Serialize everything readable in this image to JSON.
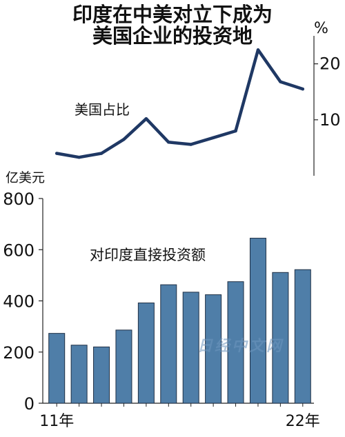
{
  "title_lines": [
    "印度在中美对立下成为",
    "美国企业的投资地"
  ],
  "watermark": "日经中文网",
  "chart_data": [
    {
      "type": "line",
      "series_label": "美国占比",
      "unit": "%",
      "x": [
        2011,
        2012,
        2013,
        2014,
        2015,
        2016,
        2017,
        2018,
        2019,
        2020,
        2021,
        2022
      ],
      "values": [
        4.0,
        3.3,
        4.0,
        6.5,
        10.2,
        6.0,
        5.6,
        6.8,
        8.0,
        22.5,
        16.8,
        15.5
      ],
      "yticks": [
        10,
        20
      ],
      "ylim": [
        0,
        25
      ],
      "color": "#1f3864"
    },
    {
      "type": "bar",
      "series_label": "对印度直接投资额",
      "unit": "亿美元",
      "x": [
        2011,
        2012,
        2013,
        2014,
        2015,
        2016,
        2017,
        2018,
        2019,
        2020,
        2021,
        2022
      ],
      "values": [
        273,
        227,
        220,
        286,
        392,
        463,
        434,
        424,
        475,
        645,
        511,
        522
      ],
      "yticks": [
        0,
        200,
        400,
        600,
        800
      ],
      "ylim": [
        0,
        800
      ],
      "xtick_labels": [
        "11年",
        "22年"
      ],
      "color": "#4f7ea8"
    }
  ]
}
